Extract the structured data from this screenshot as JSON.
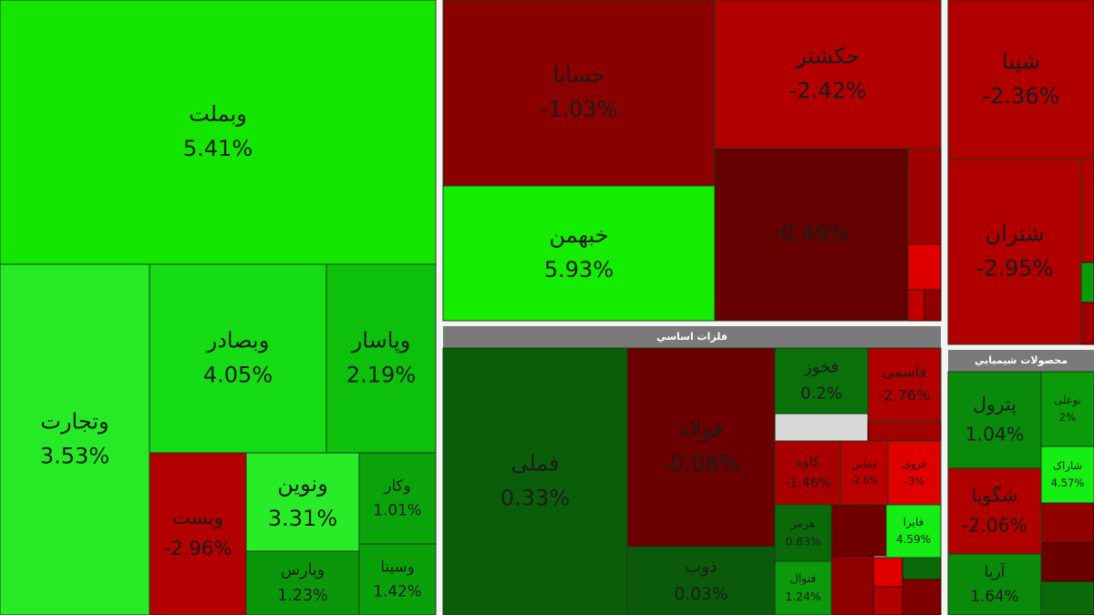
{
  "chart_data": {
    "type": "treemap",
    "groups": [
      {
        "title": null,
        "names": [
          "وبملت",
          "وتجارت",
          "وبصادر",
          "وپاسار",
          "وبست",
          "ونوین",
          "وکار",
          "وپارس",
          "وسينا"
        ],
        "values": [
          5.41,
          3.53,
          4.05,
          2.19,
          -2.96,
          3.31,
          1.01,
          1.23,
          1.42
        ],
        "value_labels": [
          "5.41%",
          "3.53%",
          "4.05%",
          "2.19%",
          "-2.96%",
          "3.31%",
          "1.01%",
          "1.23%",
          "1.42%"
        ],
        "colors": [
          "#14e600",
          "#25ea25",
          "#16dc16",
          "#0cc00c",
          "#b30000",
          "#28ec28",
          "#0aa30a",
          "#0a980a",
          "#0aa00a"
        ]
      },
      {
        "title": null,
        "names": [
          "حسابا",
          "حکشتر",
          "خبهمن",
          null
        ],
        "values": [
          -1.03,
          -2.42,
          5.93,
          -0.49
        ],
        "value_labels": [
          "-1.03%",
          "-2.42%",
          "5.93%",
          "-0.49%"
        ],
        "colors": [
          "#8a0000",
          "#b20000",
          "#14ec00",
          "#660000"
        ]
      },
      {
        "title": "فلزات اساسي",
        "names": [
          "فملی",
          "فولاد",
          "ذوب",
          "فخوز",
          "فاسمی",
          "کاوه",
          "فخاس",
          "فروی",
          "هرمز",
          "فایرا",
          "فنوال"
        ],
        "values": [
          0.33,
          -0.08,
          0.03,
          0.2,
          -2.76,
          -1.46,
          -2.6,
          -3,
          0.83,
          4.59,
          1.24
        ],
        "value_labels": [
          "0.33%",
          "-0.08%",
          "0.03%",
          "0.2%",
          "-2.76%",
          "-1.46%",
          "-2.6%",
          "-3%",
          "0.83%",
          "4.59%",
          "1.24%"
        ],
        "colors": [
          "#0a5e0a",
          "#6a0000",
          "#0a5a0a",
          "#0a700a",
          "#b00000",
          "#a80000",
          "#bb0000",
          "#e00000",
          "#0a6a0a",
          "#14ee14",
          "#0a9a0a"
        ]
      },
      {
        "title": null,
        "names": [
          "شپنا",
          "شتران"
        ],
        "values": [
          -2.36,
          -2.95
        ],
        "value_labels": [
          "-2.36%",
          "-2.95%"
        ],
        "colors": [
          "#b00000",
          "#b00000"
        ]
      },
      {
        "title": "محصولات شيميايي",
        "names": [
          "پترول",
          "نوعلی",
          "شاراک",
          "شگویا",
          "آریا"
        ],
        "values": [
          1.04,
          2,
          4.57,
          -2.06,
          1.64
        ],
        "value_labels": [
          "1.04%",
          "2%",
          "4.57%",
          "-2.06%",
          "1.64%"
        ],
        "colors": [
          "#0a8a0a",
          "#0a9a0a",
          "#14ee14",
          "#b00000",
          "#0a8a0a"
        ]
      }
    ]
  }
}
